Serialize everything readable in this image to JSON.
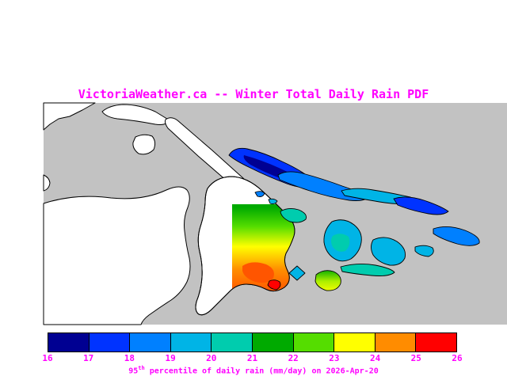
{
  "title": "VictoriaWeather.ca -- Winter Total Daily Rain PDF",
  "colors": {
    "text_accent": "#ff00ff",
    "coastline": "#000000"
  },
  "map": {
    "sea_color": "#c2c2c2",
    "land_color": "#ffffff",
    "hotspot_color": "#ff5500"
  },
  "colorbar": {
    "ticks": [
      "16",
      "17",
      "18",
      "19",
      "20",
      "21",
      "22",
      "23",
      "24",
      "25",
      "26"
    ],
    "colors": [
      "#000092",
      "#0033ff",
      "#0080ff",
      "#00b4e6",
      "#00ccae",
      "#00aa00",
      "#55dd00",
      "#ffff00",
      "#ff8c00",
      "#ff0000"
    ],
    "caption": {
      "base_left": "95",
      "superscript": "th",
      "base_right": " percentile of daily rain (mm/day) on 2026-Apr-20"
    }
  }
}
